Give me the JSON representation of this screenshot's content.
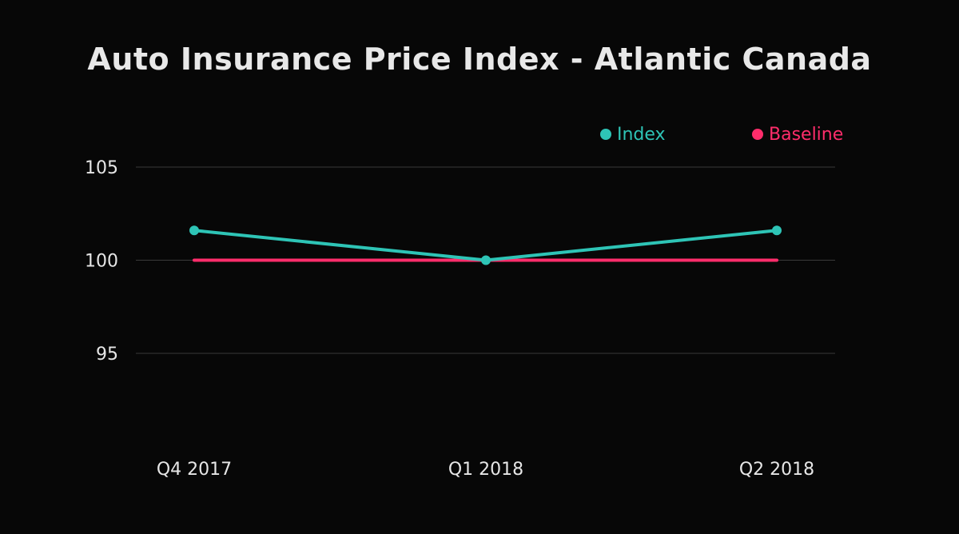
{
  "chart_data": {
    "type": "line",
    "title": "Auto Insurance Price Index - Atlantic Canada",
    "xlabel": "",
    "ylabel": "",
    "categories": [
      "Q4 2017",
      "Q1 2018",
      "Q2 2018"
    ],
    "ylim": [
      90,
      105
    ],
    "yticks": [
      95,
      100,
      105
    ],
    "grid": true,
    "legend_position": "top-right",
    "series": [
      {
        "name": "Index",
        "color": "#2ec4b6",
        "values": [
          101.6,
          100.0,
          101.6
        ],
        "markers": true
      },
      {
        "name": "Baseline",
        "color": "#ff2d6b",
        "values": [
          100,
          100,
          100
        ],
        "markers": false
      }
    ]
  }
}
